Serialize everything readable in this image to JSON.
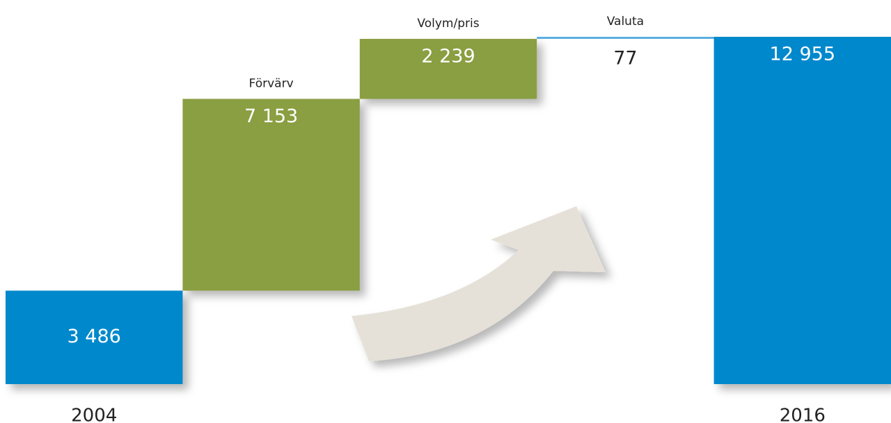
{
  "chart_data": {
    "type": "waterfall",
    "categories": [
      "2004",
      "Förvärv",
      "Volym/pris",
      "Valuta",
      "2016"
    ],
    "values": [
      3486,
      7153,
      2239,
      77,
      12955
    ],
    "value_labels": [
      "3 486",
      "7 153",
      "2 239",
      "77",
      "12 955"
    ],
    "measure": [
      "absolute",
      "relative",
      "relative",
      "relative",
      "total"
    ],
    "colors": [
      "#0088cc",
      "#8a9e42",
      "#8a9e42",
      "#5aaee0",
      "#0088cc"
    ]
  }
}
